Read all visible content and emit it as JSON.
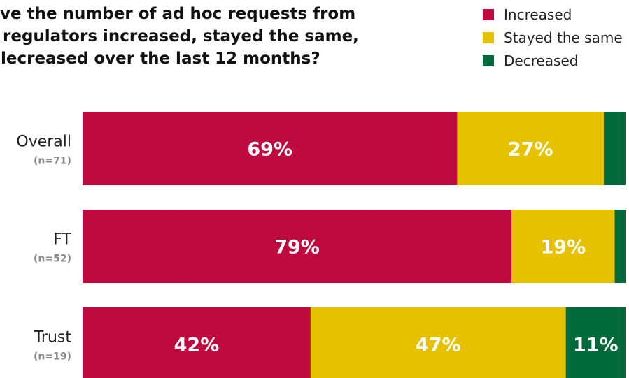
{
  "title_lines": [
    "ve the number of ad hoc requests from",
    "regulators increased, stayed the same,",
    "lecreased over the last 12 months?"
  ],
  "colors": {
    "increased": "#be0a3e",
    "stayed": "#e5c100",
    "decreased": "#006a3a"
  },
  "chart_data": {
    "type": "bar",
    "orientation": "horizontal",
    "stacked": true,
    "unit": "%",
    "xlim": [
      0,
      100
    ],
    "grid": false,
    "legend_position": "top-right",
    "categories": [
      "Overall",
      "FT",
      "Trust"
    ],
    "sample_sizes": [
      "(n=71)",
      "(n=52)",
      "(n=19)"
    ],
    "series": [
      {
        "name": "Increased",
        "key": "increased",
        "values": [
          69,
          79,
          42
        ],
        "labels": [
          "69%",
          "79%",
          "42%"
        ]
      },
      {
        "name": "Stayed the same",
        "key": "stayed",
        "values": [
          27,
          19,
          47
        ],
        "labels": [
          "27%",
          "19%",
          "47%"
        ]
      },
      {
        "name": "Decreased",
        "key": "decreased",
        "values": [
          4,
          2,
          11
        ],
        "labels": [
          "",
          "",
          "11%"
        ]
      }
    ]
  }
}
